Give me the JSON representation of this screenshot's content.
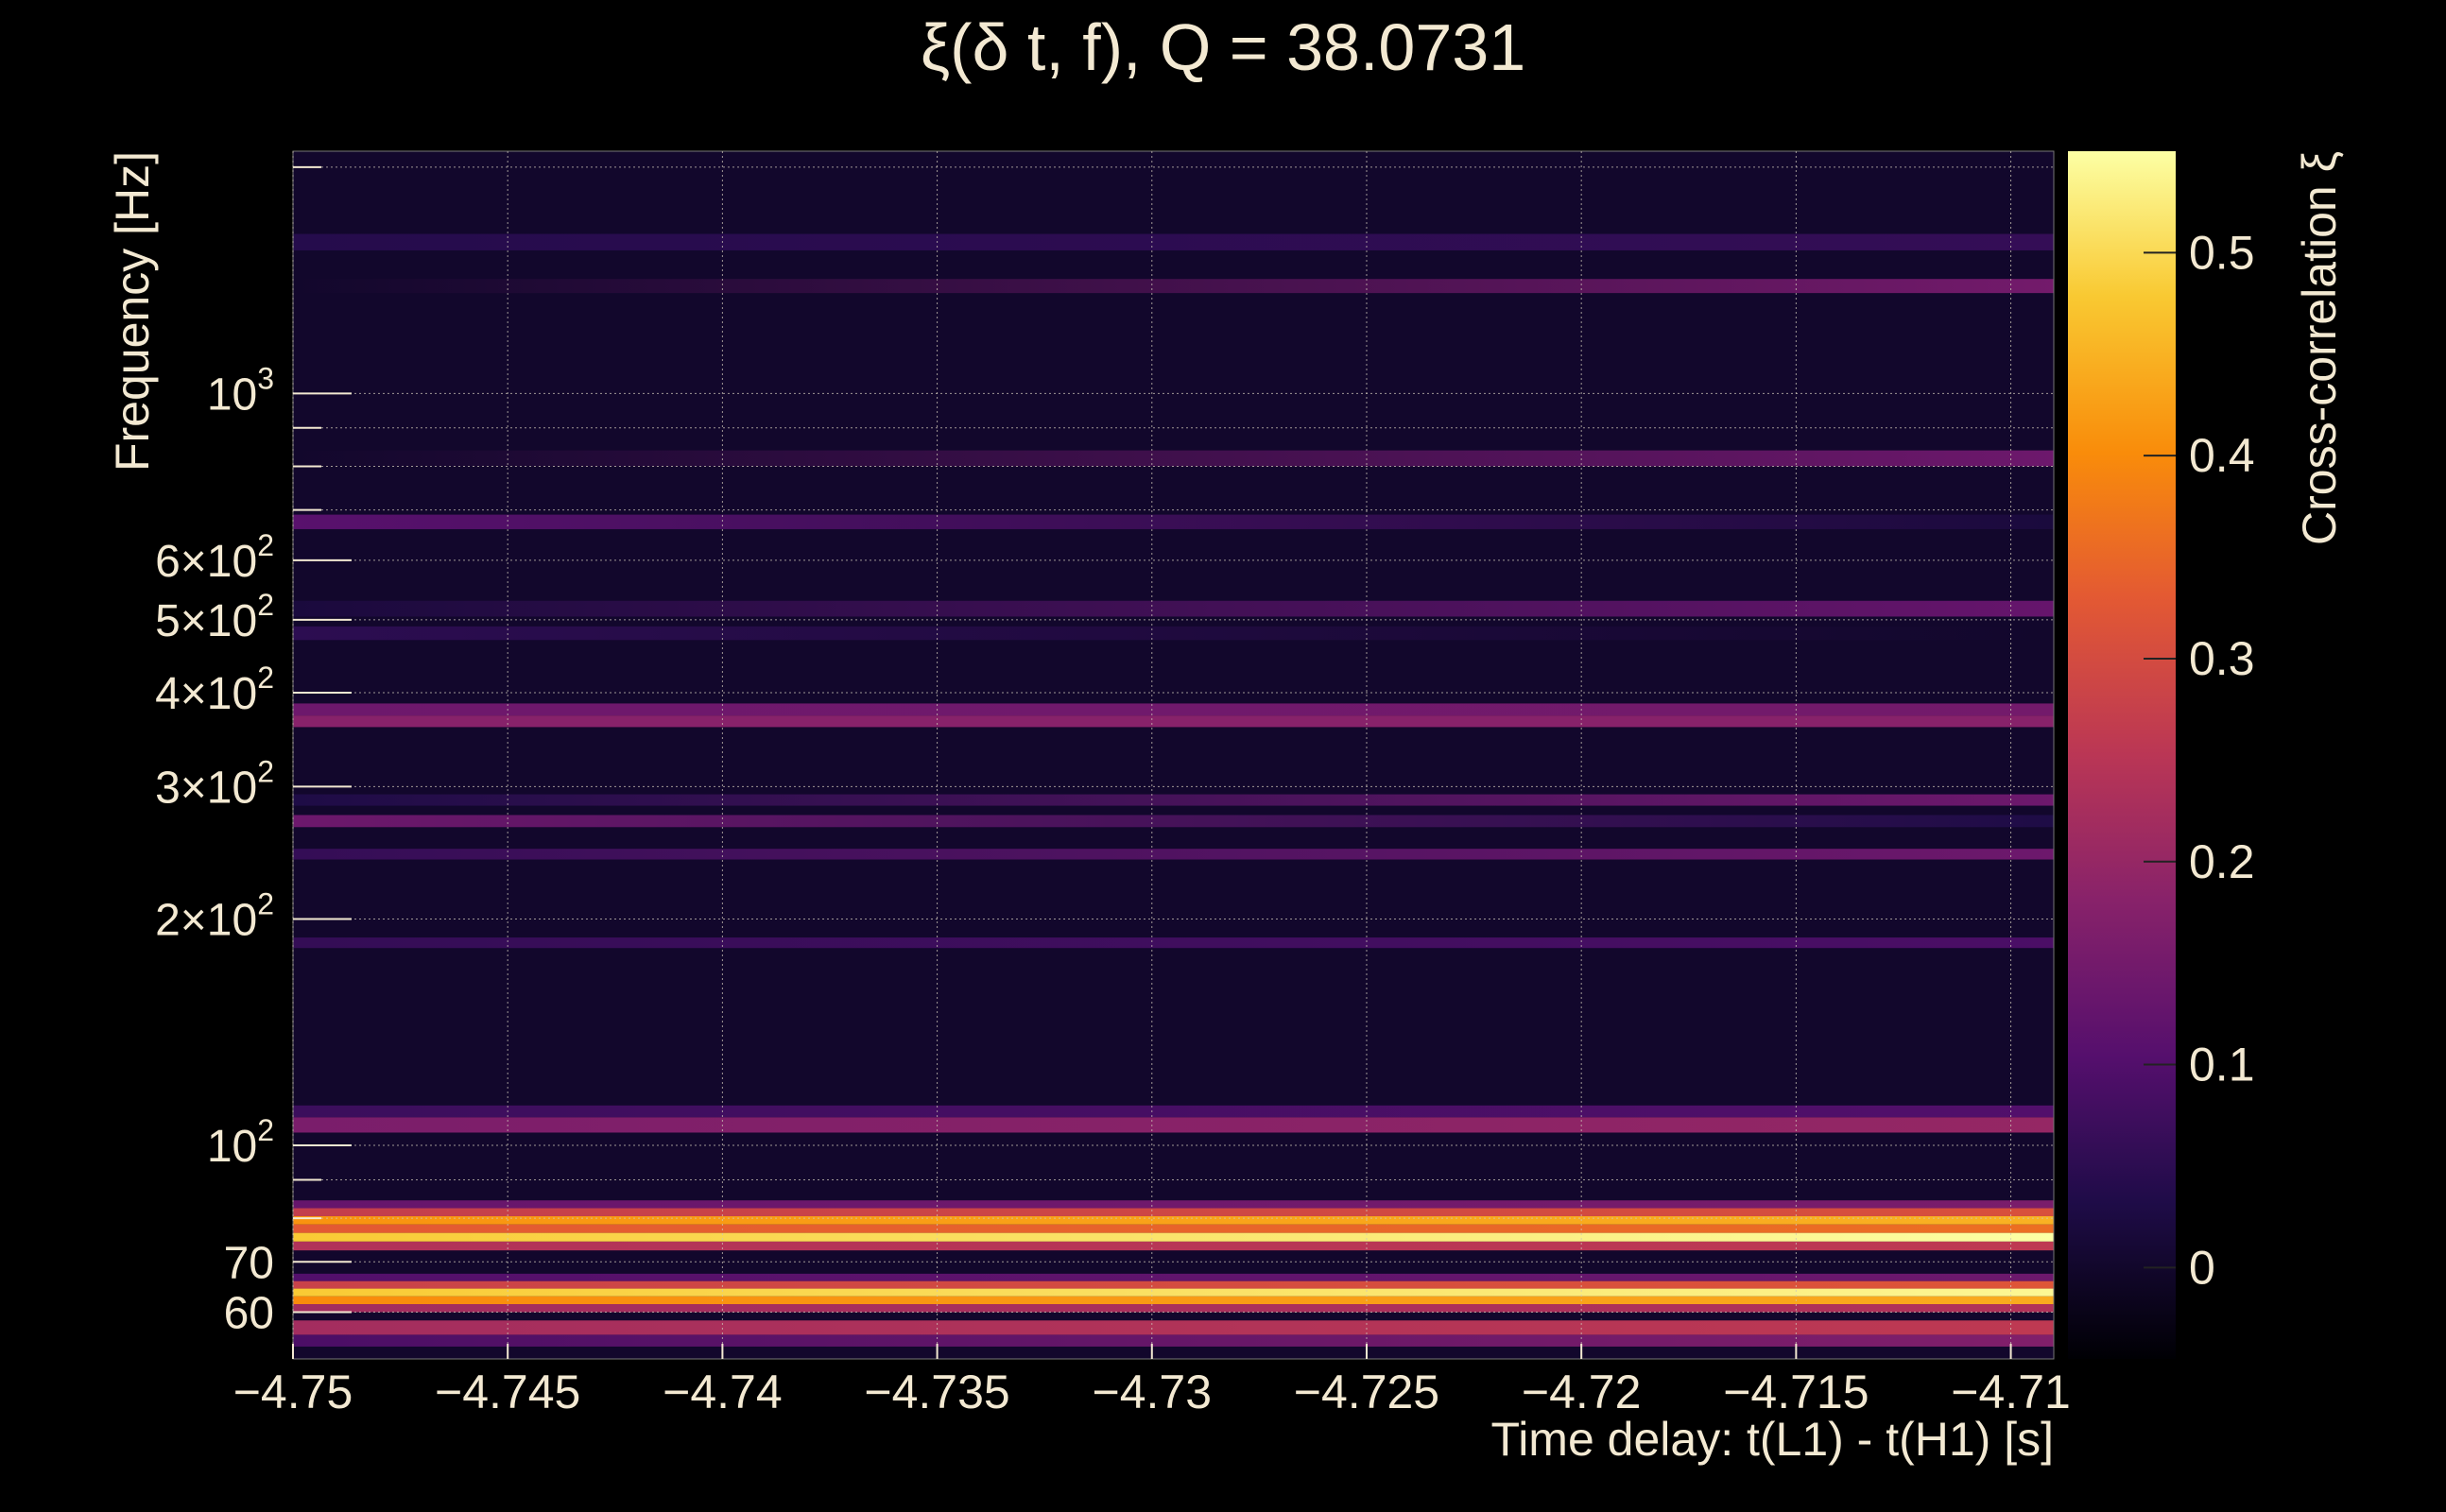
{
  "chart_data": {
    "type": "heatmap",
    "title": "ξ(δ t, f), Q = 38.0731",
    "xlabel": "Time delay: t(L1) - t(H1) [s]",
    "ylabel": "Frequency [Hz]",
    "colorbar_label": "Cross-correlation ξ",
    "xlim": [
      -4.75,
      -4.709
    ],
    "ylim": [
      52,
      2100
    ],
    "y_scale": "log",
    "zlim": [
      -0.045,
      0.55
    ],
    "colormap": "inferno",
    "grid": true,
    "x_ticks": [
      {
        "value": -4.75,
        "label": "−4.75"
      },
      {
        "value": -4.745,
        "label": "−4.745"
      },
      {
        "value": -4.74,
        "label": "−4.74"
      },
      {
        "value": -4.735,
        "label": "−4.735"
      },
      {
        "value": -4.73,
        "label": "−4.73"
      },
      {
        "value": -4.725,
        "label": "−4.725"
      },
      {
        "value": -4.72,
        "label": "−4.72"
      },
      {
        "value": -4.715,
        "label": "−4.715"
      },
      {
        "value": -4.71,
        "label": "−4.71"
      }
    ],
    "y_ticks": [
      {
        "value": 60,
        "mant": "60",
        "exp": ""
      },
      {
        "value": 70,
        "mant": "70",
        "exp": ""
      },
      {
        "value": 100,
        "mant": "10",
        "exp": "2"
      },
      {
        "value": 200,
        "mant": "2×10",
        "exp": "2"
      },
      {
        "value": 300,
        "mant": "3×10",
        "exp": "2"
      },
      {
        "value": 400,
        "mant": "4×10",
        "exp": "2"
      },
      {
        "value": 500,
        "mant": "5×10",
        "exp": "2"
      },
      {
        "value": 600,
        "mant": "6×10",
        "exp": "2"
      },
      {
        "value": 1000,
        "mant": "10",
        "exp": "3"
      }
    ],
    "y_minor_ticks": [
      80,
      90,
      700,
      800,
      900,
      2000
    ],
    "colorbar_ticks": [
      {
        "value": 0,
        "label": "0"
      },
      {
        "value": 0.1,
        "label": "0.1"
      },
      {
        "value": 0.2,
        "label": "0.2"
      },
      {
        "value": 0.3,
        "label": "0.3"
      },
      {
        "value": 0.4,
        "label": "0.4"
      },
      {
        "value": 0.5,
        "label": "0.5"
      }
    ],
    "bands": [
      {
        "f_low": 54,
        "f_high": 56,
        "start": 0.09,
        "end": 0.17
      },
      {
        "f_low": 56,
        "f_high": 58.5,
        "start": 0.22,
        "end": 0.26
      },
      {
        "f_low": 60,
        "f_high": 61.5,
        "start": 0.22,
        "end": 0.24
      },
      {
        "f_low": 61.5,
        "f_high": 63,
        "start": 0.4,
        "end": 0.44
      },
      {
        "f_low": 63,
        "f_high": 64.5,
        "start": 0.48,
        "end": 0.54
      },
      {
        "f_low": 64.5,
        "f_high": 66,
        "start": 0.28,
        "end": 0.32
      },
      {
        "f_low": 66,
        "f_high": 67.5,
        "start": 0.1,
        "end": 0.14
      },
      {
        "f_low": 72.5,
        "f_high": 74.5,
        "start": 0.24,
        "end": 0.26
      },
      {
        "f_low": 74.5,
        "f_high": 76.5,
        "start": 0.48,
        "end": 0.55
      },
      {
        "f_low": 76.5,
        "f_high": 78.5,
        "start": 0.33,
        "end": 0.36
      },
      {
        "f_low": 78.5,
        "f_high": 80.5,
        "start": 0.41,
        "end": 0.45
      },
      {
        "f_low": 80.5,
        "f_high": 82.5,
        "start": 0.27,
        "end": 0.31
      },
      {
        "f_low": 82.5,
        "f_high": 84.5,
        "start": 0.13,
        "end": 0.16
      },
      {
        "f_low": 104,
        "f_high": 109,
        "start": 0.16,
        "end": 0.2
      },
      {
        "f_low": 109,
        "f_high": 113,
        "start": 0.07,
        "end": 0.1
      },
      {
        "f_low": 183,
        "f_high": 189,
        "start": 0.06,
        "end": 0.09
      },
      {
        "f_low": 240,
        "f_high": 248,
        "start": 0.06,
        "end": 0.14
      },
      {
        "f_low": 265,
        "f_high": 275,
        "start": 0.14,
        "end": 0.03
      },
      {
        "f_low": 283,
        "f_high": 293,
        "start": 0.03,
        "end": 0.14
      },
      {
        "f_low": 360,
        "f_high": 373,
        "start": 0.18,
        "end": 0.18
      },
      {
        "f_low": 373,
        "f_high": 387,
        "start": 0.14,
        "end": 0.15
      },
      {
        "f_low": 470,
        "f_high": 490,
        "start": 0.05,
        "end": 0.0
      },
      {
        "f_low": 505,
        "f_high": 530,
        "start": 0.02,
        "end": 0.13
      },
      {
        "f_low": 660,
        "f_high": 690,
        "start": 0.11,
        "end": 0.02
      },
      {
        "f_low": 800,
        "f_high": 840,
        "start": 0.0,
        "end": 0.14
      },
      {
        "f_low": 1360,
        "f_high": 1420,
        "start": 0.0,
        "end": 0.15
      },
      {
        "f_low": 1550,
        "f_high": 1630,
        "start": 0.04,
        "end": 0.06
      }
    ]
  }
}
